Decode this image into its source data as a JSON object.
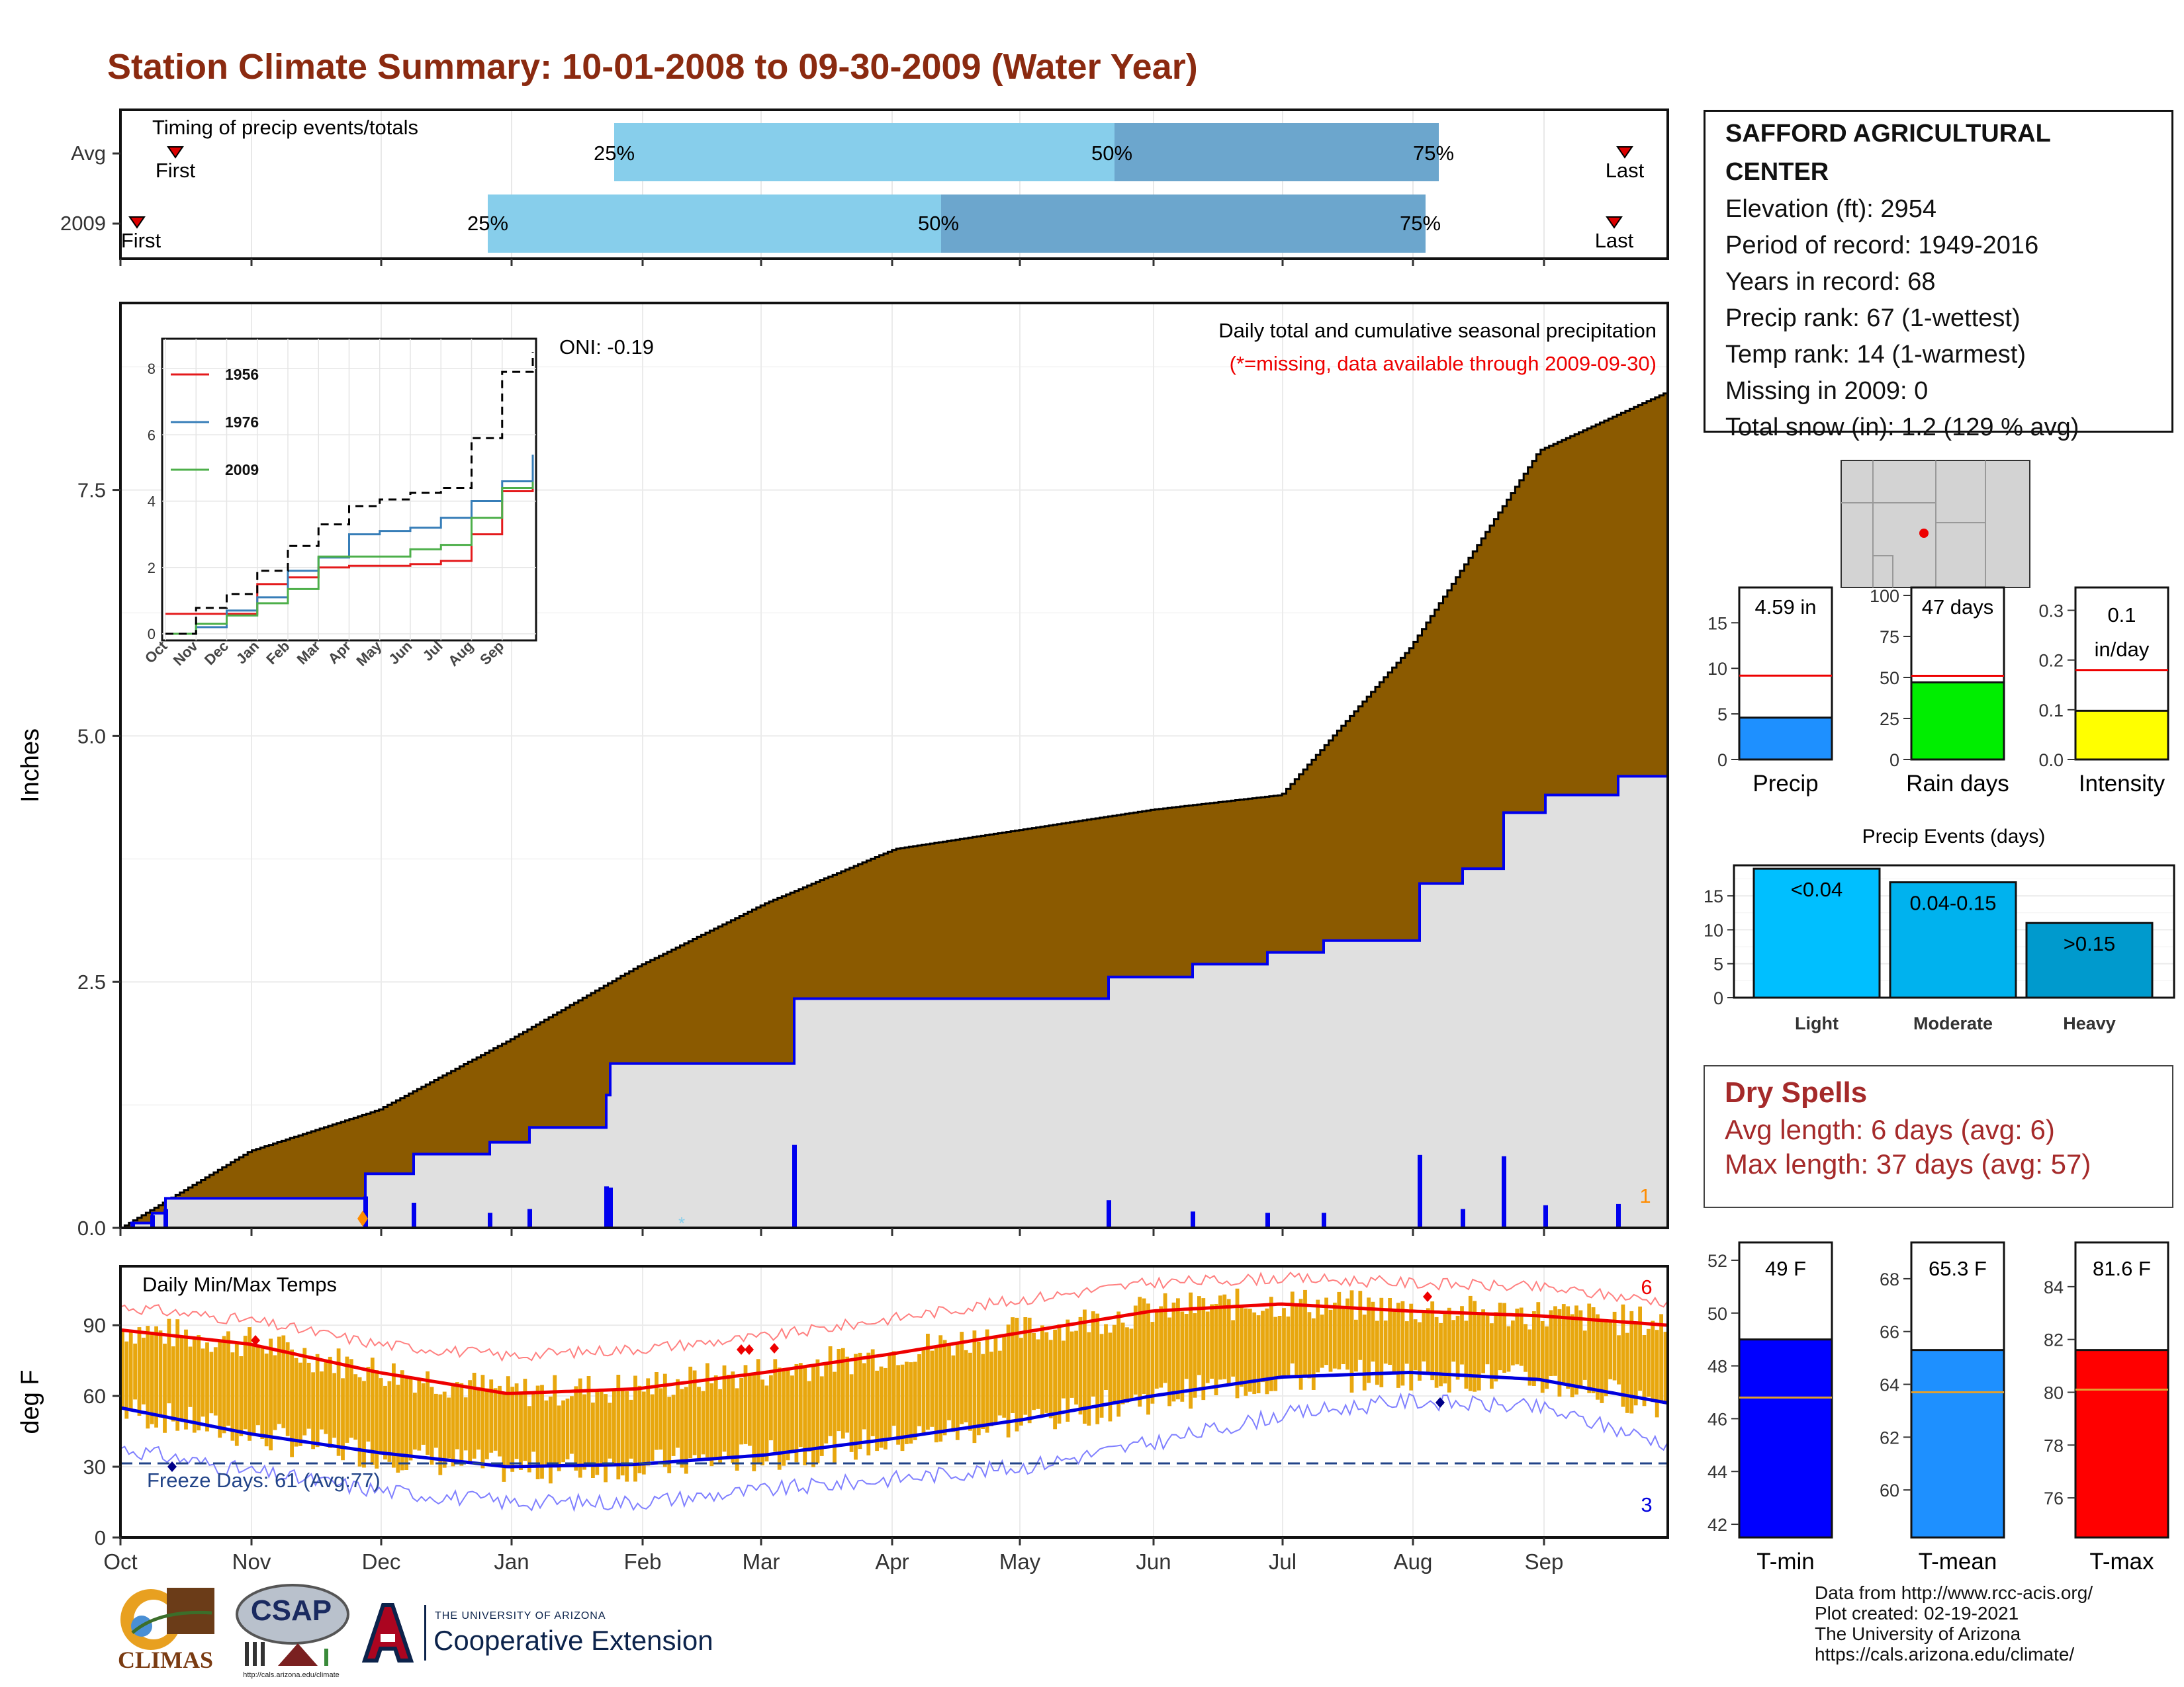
{
  "title": "Station Climate Summary: 10-01-2008 to 09-30-2009 (Water Year)",
  "timing": {
    "label": "Timing of precip events/totals",
    "rows": [
      {
        "name": "Avg",
        "first": "First",
        "last": "Last",
        "q25": "25%",
        "q50": "50%",
        "q75": "75%"
      },
      {
        "name": "2009",
        "first": "First",
        "last": "Last",
        "q25": "25%",
        "q50": "50%",
        "q75": "75%"
      }
    ]
  },
  "station": {
    "name": "SAFFORD AGRICULTURAL CENTER",
    "lines": [
      "Elevation (ft): 2954",
      "Period of record: 1949-2016",
      "Years in record: 68",
      "Precip rank: 67 (1-wettest)",
      "Temp rank: 14 (1-warmest)",
      "Missing in 2009: 0",
      "Total snow (in): 1.2 (129 % avg)"
    ]
  },
  "precip_panel": {
    "ylabel": "Inches",
    "oni": "ONI: -0.19",
    "caption": "Daily total and cumulative seasonal precipitation",
    "missing_note": "(*=missing, data available through 2009-09-30)",
    "count_label": "1",
    "yticks": [
      "0.0",
      "2.5",
      "5.0",
      "7.5"
    ]
  },
  "months": [
    "Oct",
    "Nov",
    "Dec",
    "Jan",
    "Feb",
    "Mar",
    "Apr",
    "May",
    "Jun",
    "Jul",
    "Aug",
    "Sep"
  ],
  "inset": {
    "legend": [
      "1956",
      "1976",
      "2009"
    ],
    "yticks": [
      "0",
      "2",
      "4",
      "6",
      "8"
    ]
  },
  "temp_panel": {
    "ylabel": "deg F",
    "label": "Daily Min/Max Temps",
    "freeze": "Freeze Days: 61 (Avg:77)",
    "max_count": "6",
    "min_count": "3",
    "yticks": [
      "0",
      "30",
      "60",
      "90"
    ]
  },
  "mini_bars": [
    {
      "label": "Precip",
      "value_text": "4.59 in",
      "value": 4.59,
      "avg": 9.2,
      "color": "#1e90ff",
      "yticks": [
        "0",
        "5",
        "10",
        "15"
      ]
    },
    {
      "label": "Rain days",
      "value_text": "47 days",
      "value": 47,
      "avg": 51,
      "color": "#00ee00",
      "yticks": [
        "0",
        "25",
        "50",
        "75",
        "100"
      ]
    },
    {
      "label": "Intensity",
      "value_text": "0.1",
      "value_text2": "in/day",
      "value": 0.098,
      "avg": 0.18,
      "color": "#ffff00",
      "yticks": [
        "0.0",
        "0.1",
        "0.2",
        "0.3"
      ]
    }
  ],
  "precip_events": {
    "title": "Precip Events (days)",
    "yticks": [
      "0",
      "5",
      "10",
      "15"
    ],
    "bars": [
      {
        "category": "Light",
        "label": "<0.04",
        "value": 19,
        "color": "#00bfff"
      },
      {
        "category": "Moderate",
        "label": "0.04-0.15",
        "value": 17,
        "color": "#00b2ee"
      },
      {
        "category": "Heavy",
        "label": ">0.15",
        "value": 11,
        "color": "#009acd"
      }
    ]
  },
  "dry_spells": {
    "title": "Dry Spells",
    "avg": "Avg length: 6 days (avg: 6)",
    "max": "Max length: 37 days (avg: 57)"
  },
  "temp_bars": [
    {
      "label": "T-min",
      "value_text": "49 F",
      "value": 49,
      "avg": 46.8,
      "color": "#0000ff",
      "yticks": [
        "42",
        "44",
        "46",
        "48",
        "50",
        "52"
      ]
    },
    {
      "label": "T-mean",
      "value_text": "65.3 F",
      "value": 65.3,
      "avg": 63.7,
      "color": "#1e90ff",
      "yticks": [
        "60",
        "62",
        "64",
        "66",
        "68"
      ]
    },
    {
      "label": "T-max",
      "value_text": "81.6 F",
      "value": 81.6,
      "avg": 80.1,
      "color": "#ff0000",
      "yticks": [
        "76",
        "78",
        "80",
        "82",
        "84"
      ]
    }
  ],
  "footer": [
    "Data from http://www.rcc-acis.org/",
    "Plot created: 02-19-2021",
    "The University of Arizona",
    "https://cals.arizona.edu/climate/"
  ],
  "logos": {
    "climas": "CLIMAS",
    "csap": "CSAP",
    "csap_url": "http://cals.arizona.edu/climate",
    "ua_small": "THE UNIVERSITY OF ARIZONA",
    "ua_big": "Cooperative Extension"
  },
  "chart_data": [
    {
      "type": "area",
      "title": "Daily total and cumulative seasonal precipitation",
      "ylabel": "Inches",
      "ylim": [
        0,
        9.4
      ],
      "x": [
        "Oct",
        "Nov",
        "Dec",
        "Jan",
        "Feb",
        "Mar",
        "Apr",
        "May",
        "Jun",
        "Jul",
        "Aug",
        "Sep",
        "end"
      ],
      "series": [
        {
          "name": "Avg cumulative",
          "values": [
            0.0,
            0.78,
            1.2,
            1.9,
            2.65,
            3.3,
            3.85,
            4.05,
            4.25,
            4.4,
            5.9,
            7.9,
            8.5
          ]
        },
        {
          "name": "2009 cumulative",
          "values": [
            0.0,
            0.3,
            0.55,
            0.92,
            1.35,
            2.33,
            2.33,
            2.33,
            2.55,
            2.68,
            3.5,
            4.4,
            4.59
          ]
        }
      ]
    },
    {
      "type": "line",
      "title": "",
      "ylim": [
        0,
        8.5
      ],
      "categories": [
        "Oct",
        "Nov",
        "Dec",
        "Jan",
        "Feb",
        "Mar",
        "Apr",
        "May",
        "Jun",
        "Jul",
        "Aug",
        "Sep",
        "end"
      ],
      "series": [
        {
          "name": "1956",
          "color": "#e41a1c",
          "values": [
            0.6,
            0.6,
            0.6,
            1.5,
            1.7,
            2.0,
            2.05,
            2.05,
            2.1,
            2.2,
            3.0,
            4.3,
            4.5
          ]
        },
        {
          "name": "1976",
          "color": "#377eb8",
          "values": [
            0.0,
            0.2,
            0.7,
            1.1,
            1.9,
            2.3,
            3.0,
            3.1,
            3.2,
            3.5,
            4.0,
            4.6,
            5.4
          ]
        },
        {
          "name": "2009",
          "color": "#4daf4a",
          "values": [
            0.0,
            0.3,
            0.55,
            0.92,
            1.35,
            2.33,
            2.33,
            2.33,
            2.55,
            2.68,
            3.5,
            4.4,
            4.59
          ]
        },
        {
          "name": "Avg",
          "color": "#000000",
          "values": [
            0.0,
            0.78,
            1.2,
            1.9,
            2.65,
            3.3,
            3.85,
            4.05,
            4.25,
            4.4,
            5.9,
            7.9,
            8.5
          ]
        }
      ]
    },
    {
      "type": "line",
      "title": "Daily Min/Max Temps",
      "ylabel": "deg F",
      "ylim": [
        0,
        115
      ],
      "categories": [
        "Oct",
        "Nov",
        "Dec",
        "Jan",
        "Feb",
        "Mar",
        "Apr",
        "May",
        "Jun",
        "Jul",
        "Aug",
        "Sep",
        "end"
      ],
      "series": [
        {
          "name": "Avg max",
          "values": [
            88,
            82,
            70,
            61,
            63,
            70,
            78,
            87,
            96,
            99,
            96,
            94,
            90
          ]
        },
        {
          "name": "Avg min",
          "values": [
            55,
            44,
            36,
            30,
            31,
            35,
            42,
            50,
            60,
            68,
            70,
            67,
            57
          ]
        },
        {
          "name": "Record max",
          "values": [
            98,
            92,
            82,
            77,
            80,
            85,
            93,
            101,
            108,
            110,
            108,
            106,
            100
          ]
        },
        {
          "name": "Record min",
          "values": [
            38,
            28,
            20,
            15,
            15,
            20,
            25,
            30,
            40,
            52,
            58,
            55,
            40
          ]
        }
      ]
    }
  ]
}
